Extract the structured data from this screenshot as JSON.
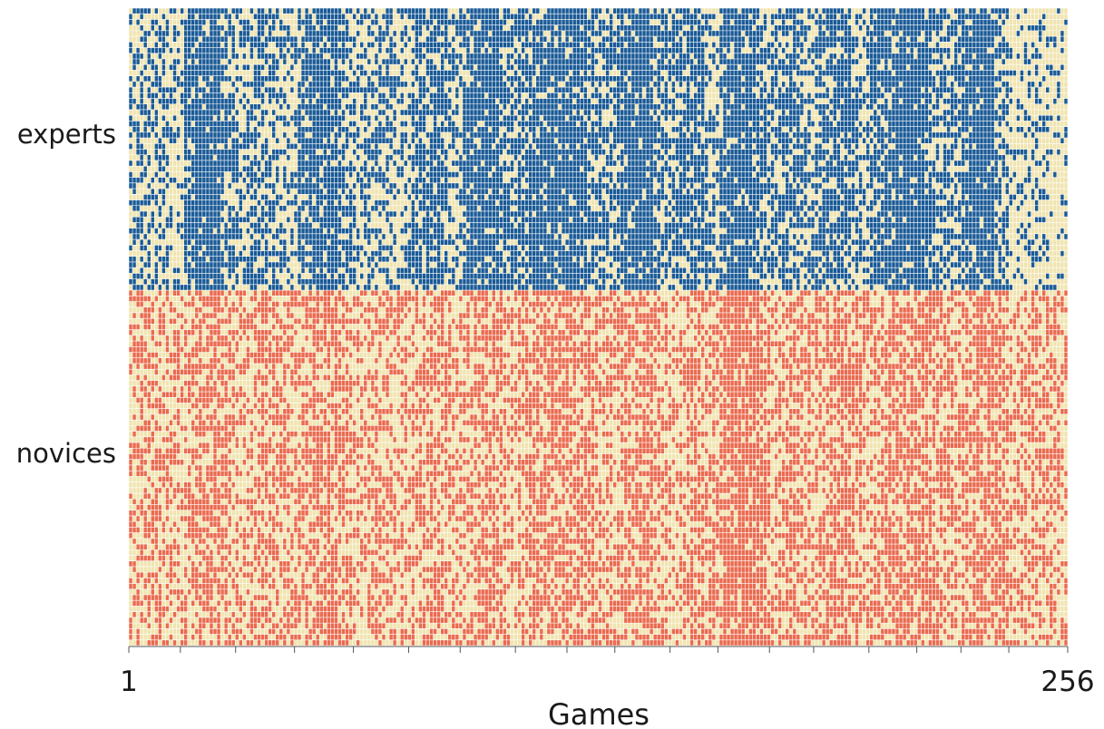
{
  "chart_data": {
    "type": "heatmap",
    "xlabel": "Games",
    "xlim": [
      1,
      256
    ],
    "x_tick_labels": [
      "1",
      "256"
    ],
    "groups": [
      {
        "name": "experts",
        "rows": 50,
        "color": "#1a5a96"
      },
      {
        "name": "novices",
        "rows": 63,
        "color": "#ea6a4f"
      }
    ],
    "empty_color": "#f0e4b0",
    "grid_color": "#ffffff",
    "game_blocks": [
      {
        "start": 1,
        "end": 15,
        "expert_fill": 0.5,
        "novice_fill": 0.47
      },
      {
        "start": 16,
        "end": 30,
        "expert_fill": 0.93,
        "novice_fill": 0.58
      },
      {
        "start": 31,
        "end": 46,
        "expert_fill": 0.55,
        "novice_fill": 0.5
      },
      {
        "start": 47,
        "end": 62,
        "expert_fill": 0.86,
        "novice_fill": 0.6
      },
      {
        "start": 63,
        "end": 77,
        "expert_fill": 0.56,
        "novice_fill": 0.45
      },
      {
        "start": 78,
        "end": 91,
        "expert_fill": 0.73,
        "novice_fill": 0.47
      },
      {
        "start": 92,
        "end": 106,
        "expert_fill": 0.91,
        "novice_fill": 0.55
      },
      {
        "start": 107,
        "end": 133,
        "expert_fill": 0.87,
        "novice_fill": 0.6
      },
      {
        "start": 134,
        "end": 148,
        "expert_fill": 0.9,
        "novice_fill": 0.56
      },
      {
        "start": 149,
        "end": 161,
        "expert_fill": 0.8,
        "novice_fill": 0.52
      },
      {
        "start": 162,
        "end": 175,
        "expert_fill": 0.88,
        "novice_fill": 0.78
      },
      {
        "start": 176,
        "end": 187,
        "expert_fill": 0.7,
        "novice_fill": 0.55
      },
      {
        "start": 188,
        "end": 202,
        "expert_fill": 0.72,
        "novice_fill": 0.6
      },
      {
        "start": 203,
        "end": 227,
        "expert_fill": 0.87,
        "novice_fill": 0.62
      },
      {
        "start": 228,
        "end": 240,
        "expert_fill": 0.92,
        "novice_fill": 0.63
      },
      {
        "start": 241,
        "end": 256,
        "expert_fill": 0.3,
        "novice_fill": 0.5
      }
    ],
    "x_ticks": [
      1,
      15,
      30,
      46,
      62,
      77,
      91,
      106,
      120,
      133,
      148,
      161,
      175,
      187,
      202,
      215,
      227,
      240,
      256
    ]
  }
}
